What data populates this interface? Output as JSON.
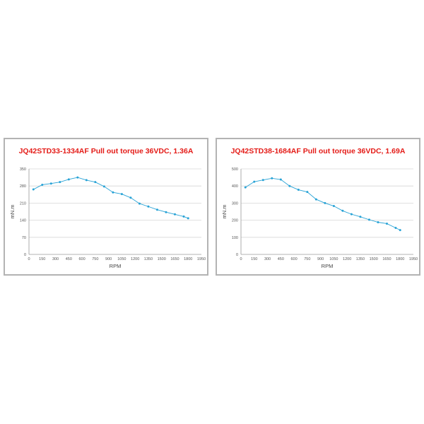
{
  "chart_data": [
    {
      "type": "line",
      "title": "JQ42STD33-1334AF Pull out torque  36VDC, 1.36A",
      "xlabel": "RPM",
      "ylabel": "mN.m",
      "xlim": [
        0,
        1950
      ],
      "ylim": [
        0,
        350
      ],
      "xticks": [
        0,
        150,
        300,
        450,
        600,
        750,
        900,
        1050,
        1200,
        1350,
        1500,
        1650,
        1800,
        1950
      ],
      "yticks": [
        0,
        70,
        140,
        210,
        280,
        350
      ],
      "grid": "horizontal",
      "color": "#29a3d6",
      "x": [
        50,
        150,
        250,
        350,
        450,
        550,
        650,
        750,
        850,
        950,
        1050,
        1150,
        1250,
        1350,
        1450,
        1550,
        1650,
        1750,
        1800
      ],
      "y": [
        266,
        285,
        290,
        296,
        307,
        315,
        304,
        296,
        278,
        254,
        247,
        232,
        208,
        196,
        183,
        173,
        164,
        155,
        148
      ]
    },
    {
      "type": "line",
      "title": "JQ42STD38-1684AF Pull out torque  36VDC, 1.69A",
      "xlabel": "RPM",
      "ylabel": "mN.m",
      "xlim": [
        0,
        1950
      ],
      "ylim": [
        0,
        500
      ],
      "xticks": [
        0,
        150,
        300,
        450,
        600,
        750,
        900,
        1050,
        1200,
        1350,
        1500,
        1650,
        1800,
        1950
      ],
      "yticks": [
        0,
        100,
        200,
        300,
        400,
        500
      ],
      "grid": "horizontal",
      "color": "#29a3d6",
      "x": [
        50,
        150,
        250,
        350,
        450,
        550,
        650,
        750,
        850,
        950,
        1050,
        1150,
        1250,
        1350,
        1450,
        1550,
        1650,
        1750,
        1800
      ],
      "y": [
        392,
        425,
        435,
        445,
        438,
        400,
        378,
        365,
        322,
        300,
        283,
        255,
        235,
        220,
        203,
        188,
        180,
        155,
        142
      ]
    }
  ]
}
